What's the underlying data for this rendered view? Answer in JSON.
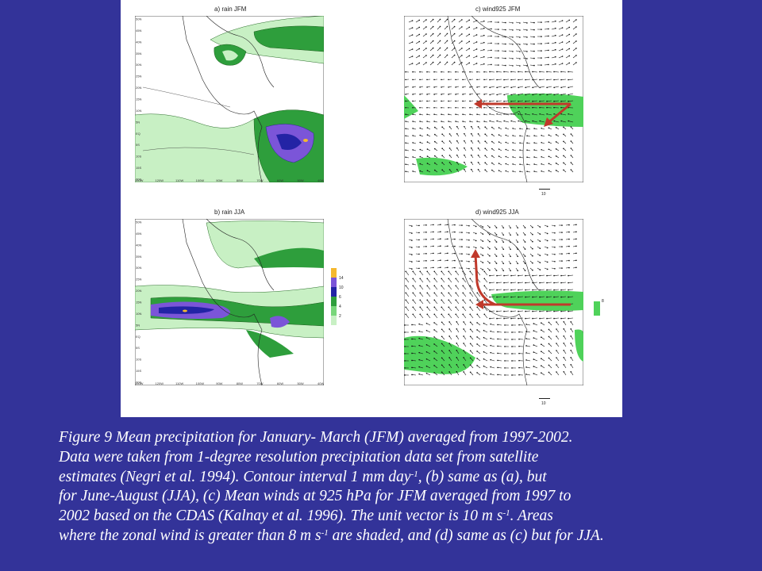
{
  "panels": {
    "a": {
      "title": "a) rain JFM"
    },
    "b": {
      "title": "b) rain JJA"
    },
    "c": {
      "title": "c) wind925 JFM"
    },
    "d": {
      "title": "d) wind925 JJA"
    }
  },
  "lat_ticks": [
    "50N",
    "45N",
    "40N",
    "35N",
    "30N",
    "25N",
    "20N",
    "15N",
    "10N",
    "5N",
    "EQ",
    "5S",
    "10S",
    "15S",
    "20S"
  ],
  "lon_ticks": [
    "130W",
    "120W",
    "110W",
    "100W",
    "90W",
    "80W",
    "70W",
    "60W",
    "50W",
    "40W"
  ],
  "colorbar_rain": {
    "ticks": [
      "14",
      "10",
      "6",
      "4",
      "2"
    ],
    "colors": [
      "#f5b82e",
      "#7b55d8",
      "#2323a5",
      "#2e9e3c",
      "#78d67a",
      "#c8f0c4"
    ]
  },
  "colorbar_wind": {
    "tick": "8",
    "color": "#4fd25a"
  },
  "reference_vector": "10",
  "colors": {
    "background": "#333399",
    "arrow": "#c0392b",
    "shade_green": "#2e9e3c",
    "shade_wind": "#4fd25a"
  },
  "caption": {
    "line1": "Figure 9 Mean precipitation for January- March (JFM) averaged from 1997-2002.",
    "line2": "Data were taken from 1-degree resolution precipitation data set from satellite",
    "line3": "estimates (Negri et al. 1994). Contour interval 1 mm day",
    "line3_sup": "-1",
    "line3_end": ", (b) same as (a), but",
    "line4": "for June-August (JJA), (c) Mean winds at 925 hPa  for  JFM averaged from 1997 to",
    "line5": "2002 based on the CDAS (Kalnay et al. 1996). The unit vector is 10 m s",
    "line5_sup": "-1",
    "line5_end": ". Areas",
    "line6": "where the zonal wind is greater than 8 m s",
    "line6_sup": "-1",
    "line6_end": " are shaded, and (d) same as (c) but for JJA."
  }
}
